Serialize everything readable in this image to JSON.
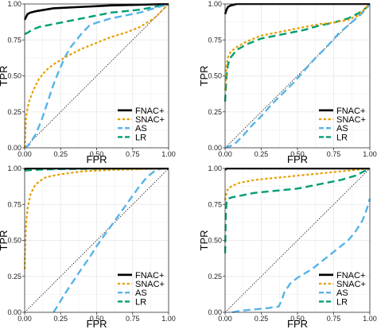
{
  "colors": {
    "FNAC+": "#000000",
    "SNAC+": "#e69f00",
    "AS": "#56b4e9",
    "LR": "#009e73",
    "chance": "#000000",
    "panel_bg": "#ffffff",
    "grid": "#ebebeb",
    "border": "#333333"
  },
  "chart_data": [
    {
      "type": "line",
      "panel": "top-left",
      "title": "",
      "xlabel": "FPR",
      "ylabel": "TPR",
      "xlim": [
        0,
        1
      ],
      "ylim": [
        0,
        1
      ],
      "x_ticks": [
        "0.00",
        "0.25",
        "0.50",
        "0.75",
        "1.00"
      ],
      "y_ticks": [
        "0.00",
        "0.25",
        "0.50",
        "0.75",
        "1.00"
      ],
      "grid": true,
      "legend_position": "bottom-right",
      "chance_line": true,
      "series": [
        {
          "name": "FNAC+",
          "dash": "solid",
          "points": [
            [
              0,
              0.89
            ],
            [
              0.01,
              0.91
            ],
            [
              0.02,
              0.93
            ],
            [
              0.04,
              0.94
            ],
            [
              0.08,
              0.95
            ],
            [
              0.2,
              0.97
            ],
            [
              0.4,
              0.98
            ],
            [
              0.6,
              0.99
            ],
            [
              0.8,
              0.995
            ],
            [
              1,
              1
            ]
          ]
        },
        {
          "name": "SNAC+",
          "dash": "dotted",
          "points": [
            [
              0,
              0
            ],
            [
              0.01,
              0.22
            ],
            [
              0.03,
              0.32
            ],
            [
              0.06,
              0.4
            ],
            [
              0.1,
              0.48
            ],
            [
              0.15,
              0.54
            ],
            [
              0.2,
              0.58
            ],
            [
              0.3,
              0.64
            ],
            [
              0.4,
              0.69
            ],
            [
              0.5,
              0.73
            ],
            [
              0.6,
              0.77
            ],
            [
              0.7,
              0.8
            ],
            [
              0.8,
              0.84
            ],
            [
              0.9,
              0.9
            ],
            [
              0.95,
              0.95
            ],
            [
              1,
              1
            ]
          ]
        },
        {
          "name": "AS",
          "dash": "dashed",
          "points": [
            [
              0,
              0
            ],
            [
              0.03,
              0.02
            ],
            [
              0.08,
              0.1
            ],
            [
              0.12,
              0.2
            ],
            [
              0.16,
              0.32
            ],
            [
              0.2,
              0.44
            ],
            [
              0.24,
              0.54
            ],
            [
              0.28,
              0.63
            ],
            [
              0.32,
              0.7
            ],
            [
              0.36,
              0.75
            ],
            [
              0.4,
              0.8
            ],
            [
              0.45,
              0.85
            ],
            [
              0.5,
              0.87
            ],
            [
              0.6,
              0.9
            ],
            [
              0.7,
              0.92
            ],
            [
              0.8,
              0.94
            ],
            [
              0.9,
              0.97
            ],
            [
              1,
              1
            ]
          ]
        },
        {
          "name": "LR",
          "dash": "dashed",
          "points": [
            [
              0,
              0.79
            ],
            [
              0.02,
              0.8
            ],
            [
              0.05,
              0.82
            ],
            [
              0.1,
              0.84
            ],
            [
              0.2,
              0.86
            ],
            [
              0.3,
              0.88
            ],
            [
              0.4,
              0.9
            ],
            [
              0.5,
              0.92
            ],
            [
              0.6,
              0.94
            ],
            [
              0.7,
              0.95
            ],
            [
              0.8,
              0.96
            ],
            [
              0.9,
              0.98
            ],
            [
              1,
              1
            ]
          ]
        }
      ]
    },
    {
      "type": "line",
      "panel": "top-right",
      "title": "",
      "xlabel": "FPR",
      "ylabel": "TPR",
      "xlim": [
        0,
        1
      ],
      "ylim": [
        0,
        1
      ],
      "x_ticks": [
        "0.00",
        "0.25",
        "0.50",
        "0.75",
        "1.00"
      ],
      "y_ticks": [
        "0.00",
        "0.25",
        "0.50",
        "0.75",
        "1.00"
      ],
      "grid": true,
      "legend_position": "bottom-right",
      "chance_line": true,
      "series": [
        {
          "name": "FNAC+",
          "dash": "solid",
          "points": [
            [
              0,
              0.93
            ],
            [
              0.01,
              0.96
            ],
            [
              0.02,
              0.98
            ],
            [
              0.04,
              0.99
            ],
            [
              0.08,
              1
            ],
            [
              1,
              1
            ]
          ]
        },
        {
          "name": "SNAC+",
          "dash": "dotted",
          "points": [
            [
              0,
              0.4
            ],
            [
              0.01,
              0.57
            ],
            [
              0.02,
              0.63
            ],
            [
              0.04,
              0.67
            ],
            [
              0.08,
              0.7
            ],
            [
              0.15,
              0.74
            ],
            [
              0.25,
              0.78
            ],
            [
              0.35,
              0.8
            ],
            [
              0.45,
              0.82
            ],
            [
              0.55,
              0.84
            ],
            [
              0.65,
              0.86
            ],
            [
              0.75,
              0.87
            ],
            [
              0.85,
              0.89
            ],
            [
              0.92,
              0.92
            ],
            [
              0.96,
              0.96
            ],
            [
              1,
              1
            ]
          ]
        },
        {
          "name": "AS",
          "dash": "dashed",
          "points": [
            [
              0,
              0
            ],
            [
              0.06,
              0.02
            ],
            [
              0.12,
              0.08
            ],
            [
              0.18,
              0.15
            ],
            [
              0.25,
              0.22
            ],
            [
              0.32,
              0.3
            ],
            [
              0.4,
              0.38
            ],
            [
              0.48,
              0.46
            ],
            [
              0.55,
              0.54
            ],
            [
              0.62,
              0.62
            ],
            [
              0.7,
              0.7
            ],
            [
              0.78,
              0.79
            ],
            [
              0.86,
              0.86
            ],
            [
              0.93,
              0.92
            ],
            [
              0.97,
              0.96
            ],
            [
              1,
              1
            ]
          ]
        },
        {
          "name": "LR",
          "dash": "dashed",
          "points": [
            [
              0,
              0.32
            ],
            [
              0.01,
              0.5
            ],
            [
              0.02,
              0.58
            ],
            [
              0.04,
              0.63
            ],
            [
              0.08,
              0.68
            ],
            [
              0.15,
              0.72
            ],
            [
              0.25,
              0.76
            ],
            [
              0.35,
              0.78
            ],
            [
              0.45,
              0.8
            ],
            [
              0.55,
              0.82
            ],
            [
              0.65,
              0.85
            ],
            [
              0.75,
              0.87
            ],
            [
              0.85,
              0.9
            ],
            [
              0.93,
              0.94
            ],
            [
              0.97,
              0.97
            ],
            [
              1,
              1
            ]
          ]
        }
      ]
    },
    {
      "type": "line",
      "panel": "bottom-left",
      "title": "",
      "xlabel": "FPR",
      "ylabel": "TPR",
      "xlim": [
        0,
        1
      ],
      "ylim": [
        0,
        1
      ],
      "x_ticks": [
        "0.00",
        "0.25",
        "0.50",
        "0.75",
        "1.00"
      ],
      "y_ticks": [
        "0.00",
        "0.25",
        "0.50",
        "0.75",
        "1.00"
      ],
      "grid": true,
      "legend_position": "bottom-right",
      "chance_line": true,
      "series": [
        {
          "name": "FNAC+",
          "dash": "solid",
          "points": [
            [
              0,
              0.99
            ],
            [
              0.005,
              1
            ],
            [
              1,
              1
            ]
          ]
        },
        {
          "name": "SNAC+",
          "dash": "dotted",
          "points": [
            [
              0,
              0.3
            ],
            [
              0.005,
              0.5
            ],
            [
              0.01,
              0.62
            ],
            [
              0.02,
              0.72
            ],
            [
              0.04,
              0.82
            ],
            [
              0.07,
              0.88
            ],
            [
              0.1,
              0.91
            ],
            [
              0.15,
              0.94
            ],
            [
              0.25,
              0.96
            ],
            [
              0.4,
              0.98
            ],
            [
              0.6,
              0.99
            ],
            [
              1,
              1
            ]
          ]
        },
        {
          "name": "AS",
          "dash": "dashed",
          "points": [
            [
              0.2,
              0
            ],
            [
              0.22,
              0.03
            ],
            [
              0.25,
              0.08
            ],
            [
              0.28,
              0.13
            ],
            [
              0.32,
              0.19
            ],
            [
              0.36,
              0.25
            ],
            [
              0.4,
              0.31
            ],
            [
              0.45,
              0.38
            ],
            [
              0.5,
              0.46
            ],
            [
              0.55,
              0.53
            ],
            [
              0.6,
              0.6
            ],
            [
              0.65,
              0.67
            ],
            [
              0.7,
              0.74
            ],
            [
              0.75,
              0.81
            ],
            [
              0.8,
              0.88
            ],
            [
              0.85,
              0.94
            ],
            [
              0.9,
              0.98
            ],
            [
              0.95,
              1
            ],
            [
              1,
              1
            ]
          ]
        },
        {
          "name": "LR",
          "dash": "dashed",
          "points": [
            [
              0,
              0.985
            ],
            [
              0.05,
              0.99
            ],
            [
              0.2,
              0.995
            ],
            [
              0.5,
              0.998
            ],
            [
              1,
              1
            ]
          ]
        }
      ]
    },
    {
      "type": "line",
      "panel": "bottom-right",
      "title": "",
      "xlabel": "FPR",
      "ylabel": "TPR",
      "xlim": [
        0,
        1
      ],
      "ylim": [
        0,
        1
      ],
      "x_ticks": [
        "0.00",
        "0.25",
        "0.50",
        "0.75",
        "1.00"
      ],
      "y_ticks": [
        "0.00",
        "0.25",
        "0.50",
        "0.75",
        "1.00"
      ],
      "grid": true,
      "legend_position": "bottom-right",
      "chance_line": true,
      "series": [
        {
          "name": "FNAC+",
          "dash": "solid",
          "points": [
            [
              0,
              0.99
            ],
            [
              0.01,
              1
            ],
            [
              1,
              1
            ]
          ]
        },
        {
          "name": "SNAC+",
          "dash": "dotted",
          "points": [
            [
              0,
              0.78
            ],
            [
              0.01,
              0.83
            ],
            [
              0.02,
              0.86
            ],
            [
              0.05,
              0.88
            ],
            [
              0.1,
              0.9
            ],
            [
              0.2,
              0.92
            ],
            [
              0.3,
              0.93
            ],
            [
              0.4,
              0.94
            ],
            [
              0.5,
              0.95
            ],
            [
              0.6,
              0.96
            ],
            [
              0.7,
              0.97
            ],
            [
              0.8,
              0.98
            ],
            [
              0.9,
              0.99
            ],
            [
              1,
              1
            ]
          ]
        },
        {
          "name": "AS",
          "dash": "dashed",
          "points": [
            [
              0.05,
              0
            ],
            [
              0.1,
              0.01
            ],
            [
              0.2,
              0.02
            ],
            [
              0.3,
              0.03
            ],
            [
              0.37,
              0.04
            ],
            [
              0.39,
              0.08
            ],
            [
              0.41,
              0.14
            ],
            [
              0.45,
              0.2
            ],
            [
              0.5,
              0.24
            ],
            [
              0.55,
              0.27
            ],
            [
              0.6,
              0.3
            ],
            [
              0.65,
              0.34
            ],
            [
              0.7,
              0.38
            ],
            [
              0.75,
              0.42
            ],
            [
              0.8,
              0.46
            ],
            [
              0.85,
              0.5
            ],
            [
              0.9,
              0.56
            ],
            [
              0.95,
              0.64
            ],
            [
              0.98,
              0.72
            ],
            [
              1,
              0.79
            ]
          ]
        },
        {
          "name": "LR",
          "dash": "dashed",
          "points": [
            [
              0,
              0.41
            ],
            [
              0.005,
              0.68
            ],
            [
              0.01,
              0.76
            ],
            [
              0.02,
              0.79
            ],
            [
              0.05,
              0.8
            ],
            [
              0.1,
              0.81
            ],
            [
              0.2,
              0.83
            ],
            [
              0.3,
              0.84
            ],
            [
              0.4,
              0.85
            ],
            [
              0.5,
              0.86
            ],
            [
              0.6,
              0.88
            ],
            [
              0.7,
              0.9
            ],
            [
              0.8,
              0.92
            ],
            [
              0.9,
              0.95
            ],
            [
              1,
              1
            ]
          ]
        }
      ]
    }
  ]
}
